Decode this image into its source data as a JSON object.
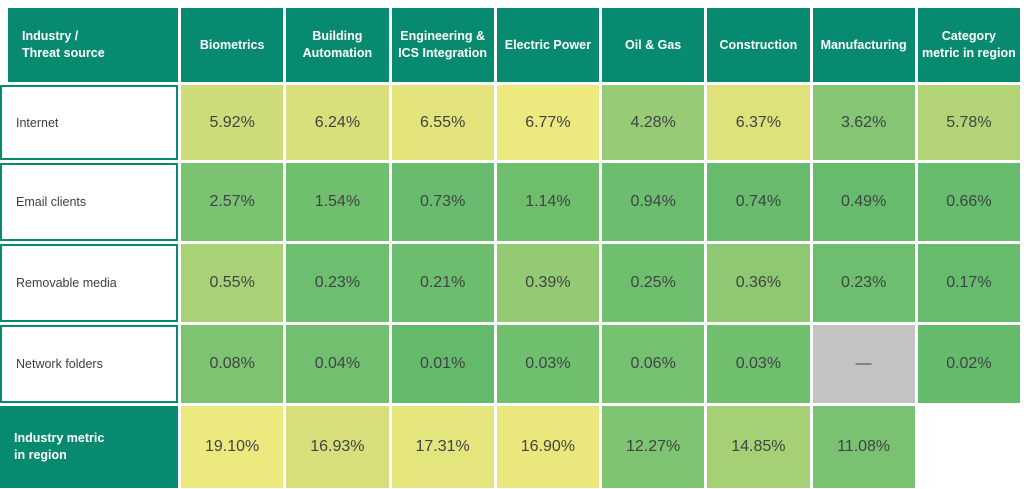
{
  "chart_data": {
    "type": "heatmap",
    "corner_header": "Industry /\nThreat source",
    "columns": [
      "Biometrics",
      "Building Automation",
      "Engineering & ICS Integration",
      "Electric Power",
      "Oil & Gas",
      "Construction",
      "Manufacturing",
      "Category metric in region"
    ],
    "colors": {
      "header_bg": "#088a70",
      "label_border": "#088a70",
      "label_text": "#3a3f42",
      "value_text": "#3f4446",
      "na_bg": "#c3c3c3",
      "empty_bg": "#ffffff",
      "high_value": "#ece97e",
      "low_value": "#64ba6b"
    },
    "rows": [
      {
        "label": "Internet",
        "cells": [
          {
            "text": "5.92%",
            "bg": "#cedb79"
          },
          {
            "text": "6.24%",
            "bg": "#d9e07b"
          },
          {
            "text": "6.55%",
            "bg": "#e3e47c"
          },
          {
            "text": "6.77%",
            "bg": "#ece97e"
          },
          {
            "text": "4.28%",
            "bg": "#97cb76"
          },
          {
            "text": "6.37%",
            "bg": "#dfe27b"
          },
          {
            "text": "3.62%",
            "bg": "#85c573"
          },
          {
            "text": "5.78%",
            "bg": "#b2d376"
          }
        ]
      },
      {
        "label": "Email clients",
        "cells": [
          {
            "text": "2.57%",
            "bg": "#7bc371"
          },
          {
            "text": "1.54%",
            "bg": "#70bf6f"
          },
          {
            "text": "0.73%",
            "bg": "#69bc6d"
          },
          {
            "text": "1.14%",
            "bg": "#6ebe6e"
          },
          {
            "text": "0.94%",
            "bg": "#6cbd6e"
          },
          {
            "text": "0.74%",
            "bg": "#69bc6d"
          },
          {
            "text": "0.49%",
            "bg": "#66bb6c"
          },
          {
            "text": "0.66%",
            "bg": "#68bc6d"
          }
        ]
      },
      {
        "label": "Removable media",
        "cells": [
          {
            "text": "0.55%",
            "bg": "#a9d175"
          },
          {
            "text": "0.23%",
            "bg": "#6dbe6e"
          },
          {
            "text": "0.21%",
            "bg": "#6cbd6d"
          },
          {
            "text": "0.39%",
            "bg": "#95ca75"
          },
          {
            "text": "0.25%",
            "bg": "#6fbf6e"
          },
          {
            "text": "0.36%",
            "bg": "#8fc873"
          },
          {
            "text": "0.23%",
            "bg": "#6dbe6e"
          },
          {
            "text": "0.17%",
            "bg": "#67bb6c"
          }
        ]
      },
      {
        "label": "Network folders",
        "cells": [
          {
            "text": "0.08%",
            "bg": "#7dc372"
          },
          {
            "text": "0.04%",
            "bg": "#72c06f"
          },
          {
            "text": "0.01%",
            "bg": "#63ba6b"
          },
          {
            "text": "0.03%",
            "bg": "#6fbf6e"
          },
          {
            "text": "0.06%",
            "bg": "#76c170"
          },
          {
            "text": "0.03%",
            "bg": "#6fbf6e"
          },
          {
            "text": "—",
            "bg": "#c3c3c3"
          },
          {
            "text": "0.02%",
            "bg": "#65bb6c"
          }
        ]
      },
      {
        "label": "Industry metric\nin region",
        "cells": [
          {
            "text": "19.10%",
            "bg": "#ece97e"
          },
          {
            "text": "16.93%",
            "bg": "#d7de7a"
          },
          {
            "text": "17.31%",
            "bg": "#e5e57d"
          },
          {
            "text": "16.90%",
            "bg": "#eae87d"
          },
          {
            "text": "12.27%",
            "bg": "#7ec472"
          },
          {
            "text": "14.85%",
            "bg": "#a6d076"
          },
          {
            "text": "11.08%",
            "bg": "#7ac271"
          },
          {
            "text": "",
            "bg": "#ffffff"
          }
        ]
      }
    ]
  }
}
